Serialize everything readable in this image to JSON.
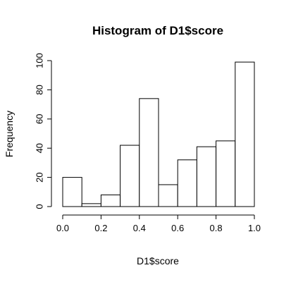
{
  "chart_data": {
    "type": "bar",
    "title": "Histogram of D1$score",
    "xlabel": "D1$score",
    "ylabel": "Frequency",
    "bins": [
      {
        "x0": 0.0,
        "x1": 0.1,
        "count": 20
      },
      {
        "x0": 0.1,
        "x1": 0.2,
        "count": 2
      },
      {
        "x0": 0.2,
        "x1": 0.3,
        "count": 8
      },
      {
        "x0": 0.3,
        "x1": 0.4,
        "count": 42
      },
      {
        "x0": 0.4,
        "x1": 0.5,
        "count": 74
      },
      {
        "x0": 0.5,
        "x1": 0.6,
        "count": 15
      },
      {
        "x0": 0.6,
        "x1": 0.7,
        "count": 32
      },
      {
        "x0": 0.7,
        "x1": 0.8,
        "count": 41
      },
      {
        "x0": 0.8,
        "x1": 0.9,
        "count": 45
      },
      {
        "x0": 0.9,
        "x1": 1.0,
        "count": 99
      }
    ],
    "xlim": [
      0.0,
      1.0
    ],
    "ylim": [
      0,
      100
    ],
    "x_ticks": [
      "0.0",
      "0.2",
      "0.4",
      "0.6",
      "0.8",
      "1.0"
    ],
    "y_ticks": [
      "0",
      "20",
      "40",
      "60",
      "80",
      "100"
    ],
    "grid": false,
    "colors": {
      "bar_fill": "#ffffff",
      "bar_stroke": "#000000",
      "axis": "#000000",
      "background": "#ffffff"
    }
  }
}
